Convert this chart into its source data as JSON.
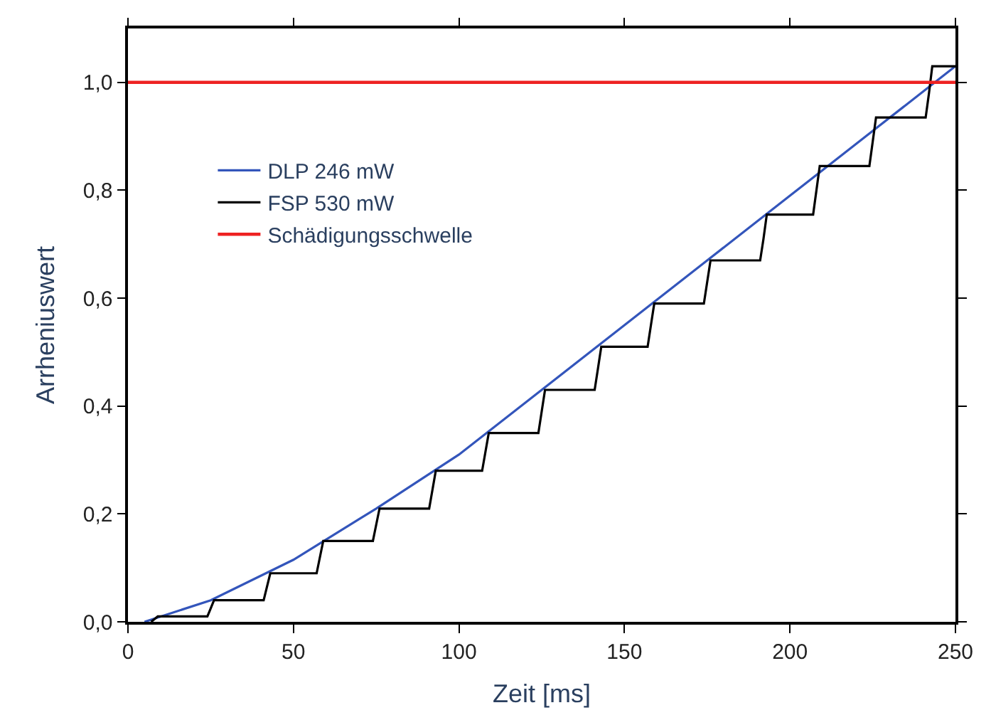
{
  "chart_data": {
    "type": "line",
    "xlabel": "Zeit [ms]",
    "ylabel": "Arrheniuswert",
    "xlim": [
      0,
      250
    ],
    "xticks": [
      0,
      50,
      100,
      150,
      200,
      250
    ],
    "ylim": [
      0,
      1.1
    ],
    "yticks": [
      {
        "value": 0,
        "label": "0,0"
      },
      {
        "value": 0.2,
        "label": "0,2"
      },
      {
        "value": 0.4,
        "label": "0,4"
      },
      {
        "value": 0.6,
        "label": "0,6"
      },
      {
        "value": 0.8,
        "label": "0,8"
      },
      {
        "value": 1.0,
        "label": "1,0"
      }
    ],
    "legend": "top left",
    "marker": "none",
    "line_style": "solid",
    "series": [
      {
        "name": "DLP 246 mW",
        "color": "#3355bb",
        "x": [
          5,
          25,
          50,
          75,
          100,
          125,
          150,
          175,
          200,
          225,
          250
        ],
        "values": [
          0,
          0.04,
          0.115,
          0.21,
          0.31,
          0.43,
          0.55,
          0.67,
          0.79,
          0.91,
          1.03
        ]
      },
      {
        "name": "FSP 530 mW",
        "color": "#000000",
        "x": [
          7,
          8,
          9,
          24,
          25,
          26,
          41,
          42,
          43,
          57,
          58,
          59,
          74,
          75,
          76,
          91,
          92,
          93,
          107,
          108,
          109,
          124,
          125,
          126,
          141,
          142,
          143,
          157,
          158,
          159,
          174,
          175,
          176,
          191,
          192,
          193,
          207,
          208,
          209,
          224,
          225,
          226,
          241,
          242,
          243,
          250
        ],
        "values": [
          0,
          0.005,
          0.01,
          0.01,
          0.025,
          0.04,
          0.04,
          0.065,
          0.09,
          0.09,
          0.12,
          0.15,
          0.15,
          0.18,
          0.21,
          0.21,
          0.245,
          0.28,
          0.28,
          0.315,
          0.35,
          0.35,
          0.39,
          0.43,
          0.43,
          0.47,
          0.51,
          0.51,
          0.55,
          0.59,
          0.59,
          0.63,
          0.67,
          0.67,
          0.71,
          0.755,
          0.755,
          0.8,
          0.845,
          0.845,
          0.89,
          0.935,
          0.935,
          0.98,
          1.03,
          1.03
        ]
      }
    ],
    "ref_lines": [
      {
        "axis": "y",
        "value": 1.0,
        "label": "Schädigungsschwelle",
        "color": "#ee2222"
      }
    ]
  }
}
